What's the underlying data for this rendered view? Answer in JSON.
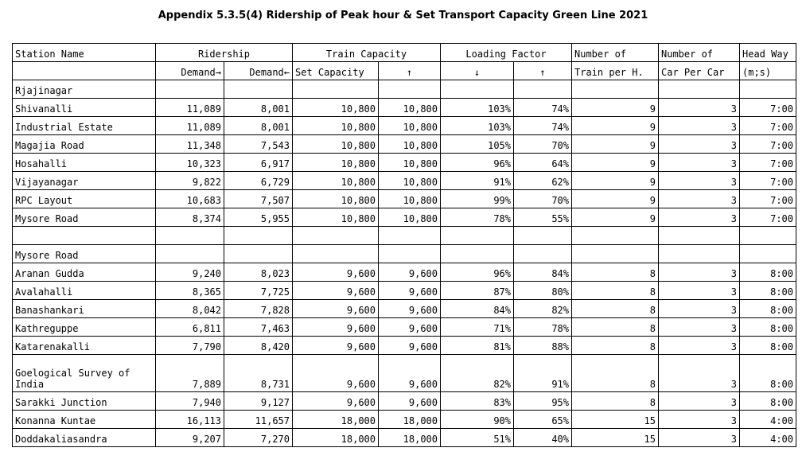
{
  "title": "Appendix 5.3.5(4) Ridership of Peak hour & Set Transport Capacity Green Line 2021",
  "headers": {
    "station": "Station Name",
    "ridership": "Ridership",
    "train_capacity": "Train Capacity",
    "loading_factor": "Loading Factor",
    "num_trains": "Number of",
    "num_trains_2": "Train per H.",
    "num_cars": "Number of",
    "num_cars_2": "Car Per Car",
    "headway": "Head Way",
    "headway_2": "(m;s)",
    "demand_fwd": "Demand→",
    "demand_back": "Demand←",
    "set_capacity": "Set Capacity",
    "cap_up": "↑",
    "lf_down": "↓",
    "lf_up": "↑"
  },
  "section1": {
    "header": "Rjajinagar",
    "rows": [
      {
        "station": "Shivanalli",
        "d1": "11,089",
        "d2": "8,001",
        "c1": "10,800",
        "c2": "10,800",
        "l1": "103%",
        "l2": "74%",
        "t": "9",
        "c": "3",
        "h": "7:00"
      },
      {
        "station": "Industrial Estate",
        "d1": "11,089",
        "d2": "8,001",
        "c1": "10,800",
        "c2": "10,800",
        "l1": "103%",
        "l2": "74%",
        "t": "9",
        "c": "3",
        "h": "7:00"
      },
      {
        "station": "Magajia Road",
        "d1": "11,348",
        "d2": "7,543",
        "c1": "10,800",
        "c2": "10,800",
        "l1": "105%",
        "l2": "70%",
        "t": "9",
        "c": "3",
        "h": "7:00"
      },
      {
        "station": "Hosahalli",
        "d1": "10,323",
        "d2": "6,917",
        "c1": "10,800",
        "c2": "10,800",
        "l1": "96%",
        "l2": "64%",
        "t": "9",
        "c": "3",
        "h": "7:00"
      },
      {
        "station": "Vijayanagar",
        "d1": "9,822",
        "d2": "6,729",
        "c1": "10,800",
        "c2": "10,800",
        "l1": "91%",
        "l2": "62%",
        "t": "9",
        "c": "3",
        "h": "7:00"
      },
      {
        "station": "RPC Layout",
        "d1": "10,683",
        "d2": "7,507",
        "c1": "10,800",
        "c2": "10,800",
        "l1": "99%",
        "l2": "70%",
        "t": "9",
        "c": "3",
        "h": "7:00"
      },
      {
        "station": "Mysore Road",
        "d1": "8,374",
        "d2": "5,955",
        "c1": "10,800",
        "c2": "10,800",
        "l1": "78%",
        "l2": "55%",
        "t": "9",
        "c": "3",
        "h": "7:00"
      }
    ]
  },
  "section2": {
    "header": "Mysore Road",
    "rows": [
      {
        "station": "Aranan Gudda",
        "d1": "9,240",
        "d2": "8,023",
        "c1": "9,600",
        "c2": "9,600",
        "l1": "96%",
        "l2": "84%",
        "t": "8",
        "c": "3",
        "h": "8:00"
      },
      {
        "station": "Avalahalli",
        "d1": "8,365",
        "d2": "7,725",
        "c1": "9,600",
        "c2": "9,600",
        "l1": "87%",
        "l2": "80%",
        "t": "8",
        "c": "3",
        "h": "8:00"
      },
      {
        "station": "Banashankari",
        "d1": "8,042",
        "d2": "7,828",
        "c1": "9,600",
        "c2": "9,600",
        "l1": "84%",
        "l2": "82%",
        "t": "8",
        "c": "3",
        "h": "8:00"
      },
      {
        "station": "Kathreguppe",
        "d1": "6,811",
        "d2": "7,463",
        "c1": "9,600",
        "c2": "9,600",
        "l1": "71%",
        "l2": "78%",
        "t": "8",
        "c": "3",
        "h": "8:00"
      },
      {
        "station": "Katarenakalli",
        "d1": "7,790",
        "d2": "8,420",
        "c1": "9,600",
        "c2": "9,600",
        "l1": "81%",
        "l2": "88%",
        "t": "8",
        "c": "3",
        "h": "8:00"
      },
      {
        "station": "Goelogical Survey of India",
        "d1": "7,889",
        "d2": "8,731",
        "c1": "9,600",
        "c2": "9,600",
        "l1": "82%",
        "l2": "91%",
        "t": "8",
        "c": "3",
        "h": "8:00",
        "tall": true
      },
      {
        "station": "Sarakki Junction",
        "d1": "7,940",
        "d2": "9,127",
        "c1": "9,600",
        "c2": "9,600",
        "l1": "83%",
        "l2": "95%",
        "t": "8",
        "c": "3",
        "h": "8:00"
      },
      {
        "station": "Konanna Kuntae",
        "d1": "16,113",
        "d2": "11,657",
        "c1": "18,000",
        "c2": "18,000",
        "l1": "90%",
        "l2": "65%",
        "t": "15",
        "c": "3",
        "h": "4:00"
      },
      {
        "station": "Doddakaliasandra",
        "d1": "9,207",
        "d2": "7,270",
        "c1": "18,000",
        "c2": "18,000",
        "l1": "51%",
        "l2": "40%",
        "t": "15",
        "c": "3",
        "h": "4:00"
      }
    ]
  }
}
